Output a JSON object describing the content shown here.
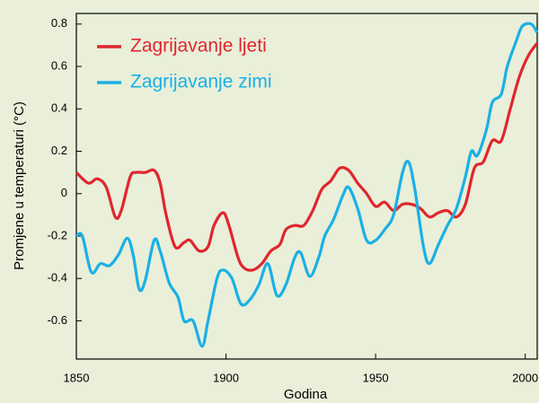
{
  "chart_data": {
    "type": "line",
    "xlabel": "Godina",
    "ylabel": "Promjene u temperaturi  (°C)",
    "xlim": [
      1850,
      2004
    ],
    "ylim": [
      -0.78,
      0.85
    ],
    "xticks": [
      1850,
      1900,
      1950,
      2000
    ],
    "yticks": [
      0.8,
      0.6,
      0.4,
      0.2,
      0,
      -0.2,
      -0.4,
      -0.6
    ],
    "legend": "upper left",
    "series": [
      {
        "name": "Zagrijavanje ljeti",
        "color": "#e0262e",
        "x": [
          1850,
          1854,
          1857,
          1860,
          1863,
          1865,
          1868,
          1870,
          1873,
          1876,
          1878,
          1880,
          1883,
          1886,
          1888,
          1891,
          1894,
          1896,
          1899,
          1901,
          1904,
          1906,
          1909,
          1912,
          1915,
          1918,
          1920,
          1923,
          1926,
          1929,
          1932,
          1935,
          1938,
          1941,
          1944,
          1947,
          1950,
          1953,
          1956,
          1959,
          1962,
          1965,
          1968,
          1971,
          1974,
          1977,
          1980,
          1983,
          1986,
          1989,
          1992,
          1995,
          1998,
          2001,
          2004
        ],
        "values": [
          0.1,
          0.05,
          0.07,
          0.03,
          -0.11,
          -0.08,
          0.08,
          0.1,
          0.1,
          0.11,
          0.05,
          -0.1,
          -0.25,
          -0.23,
          -0.22,
          -0.27,
          -0.25,
          -0.15,
          -0.09,
          -0.15,
          -0.3,
          -0.35,
          -0.36,
          -0.33,
          -0.27,
          -0.24,
          -0.17,
          -0.15,
          -0.15,
          -0.08,
          0.02,
          0.06,
          0.12,
          0.11,
          0.05,
          0,
          -0.06,
          -0.04,
          -0.08,
          -0.05,
          -0.05,
          -0.07,
          -0.11,
          -0.09,
          -0.08,
          -0.11,
          -0.05,
          0.12,
          0.15,
          0.25,
          0.25,
          0.4,
          0.55,
          0.65,
          0.71
        ]
      },
      {
        "name": "Zagrijavanje zimi",
        "color": "#1ab0e6",
        "x": [
          1850,
          1852,
          1855,
          1858,
          1861,
          1864,
          1867,
          1869,
          1871,
          1873,
          1876,
          1878,
          1881,
          1884,
          1886,
          1889,
          1892,
          1894,
          1897,
          1899,
          1902,
          1905,
          1908,
          1911,
          1914,
          1917,
          1920,
          1923,
          1925,
          1928,
          1931,
          1933,
          1936,
          1939,
          1941,
          1944,
          1947,
          1950,
          1953,
          1956,
          1959,
          1961,
          1963,
          1966,
          1968,
          1971,
          1974,
          1977,
          1980,
          1982,
          1984,
          1987,
          1989,
          1992,
          1994,
          1997,
          1999,
          2002,
          2004
        ],
        "values": [
          -0.2,
          -0.2,
          -0.37,
          -0.33,
          -0.34,
          -0.29,
          -0.21,
          -0.29,
          -0.45,
          -0.41,
          -0.22,
          -0.27,
          -0.42,
          -0.49,
          -0.6,
          -0.6,
          -0.72,
          -0.6,
          -0.4,
          -0.36,
          -0.4,
          -0.52,
          -0.5,
          -0.43,
          -0.33,
          -0.48,
          -0.43,
          -0.3,
          -0.28,
          -0.39,
          -0.3,
          -0.2,
          -0.12,
          -0.01,
          0.03,
          -0.07,
          -0.22,
          -0.22,
          -0.17,
          -0.1,
          0.1,
          0.15,
          0.03,
          -0.25,
          -0.33,
          -0.24,
          -0.15,
          -0.07,
          0.08,
          0.2,
          0.18,
          0.3,
          0.43,
          0.47,
          0.6,
          0.72,
          0.79,
          0.8,
          0.76
        ]
      }
    ]
  }
}
